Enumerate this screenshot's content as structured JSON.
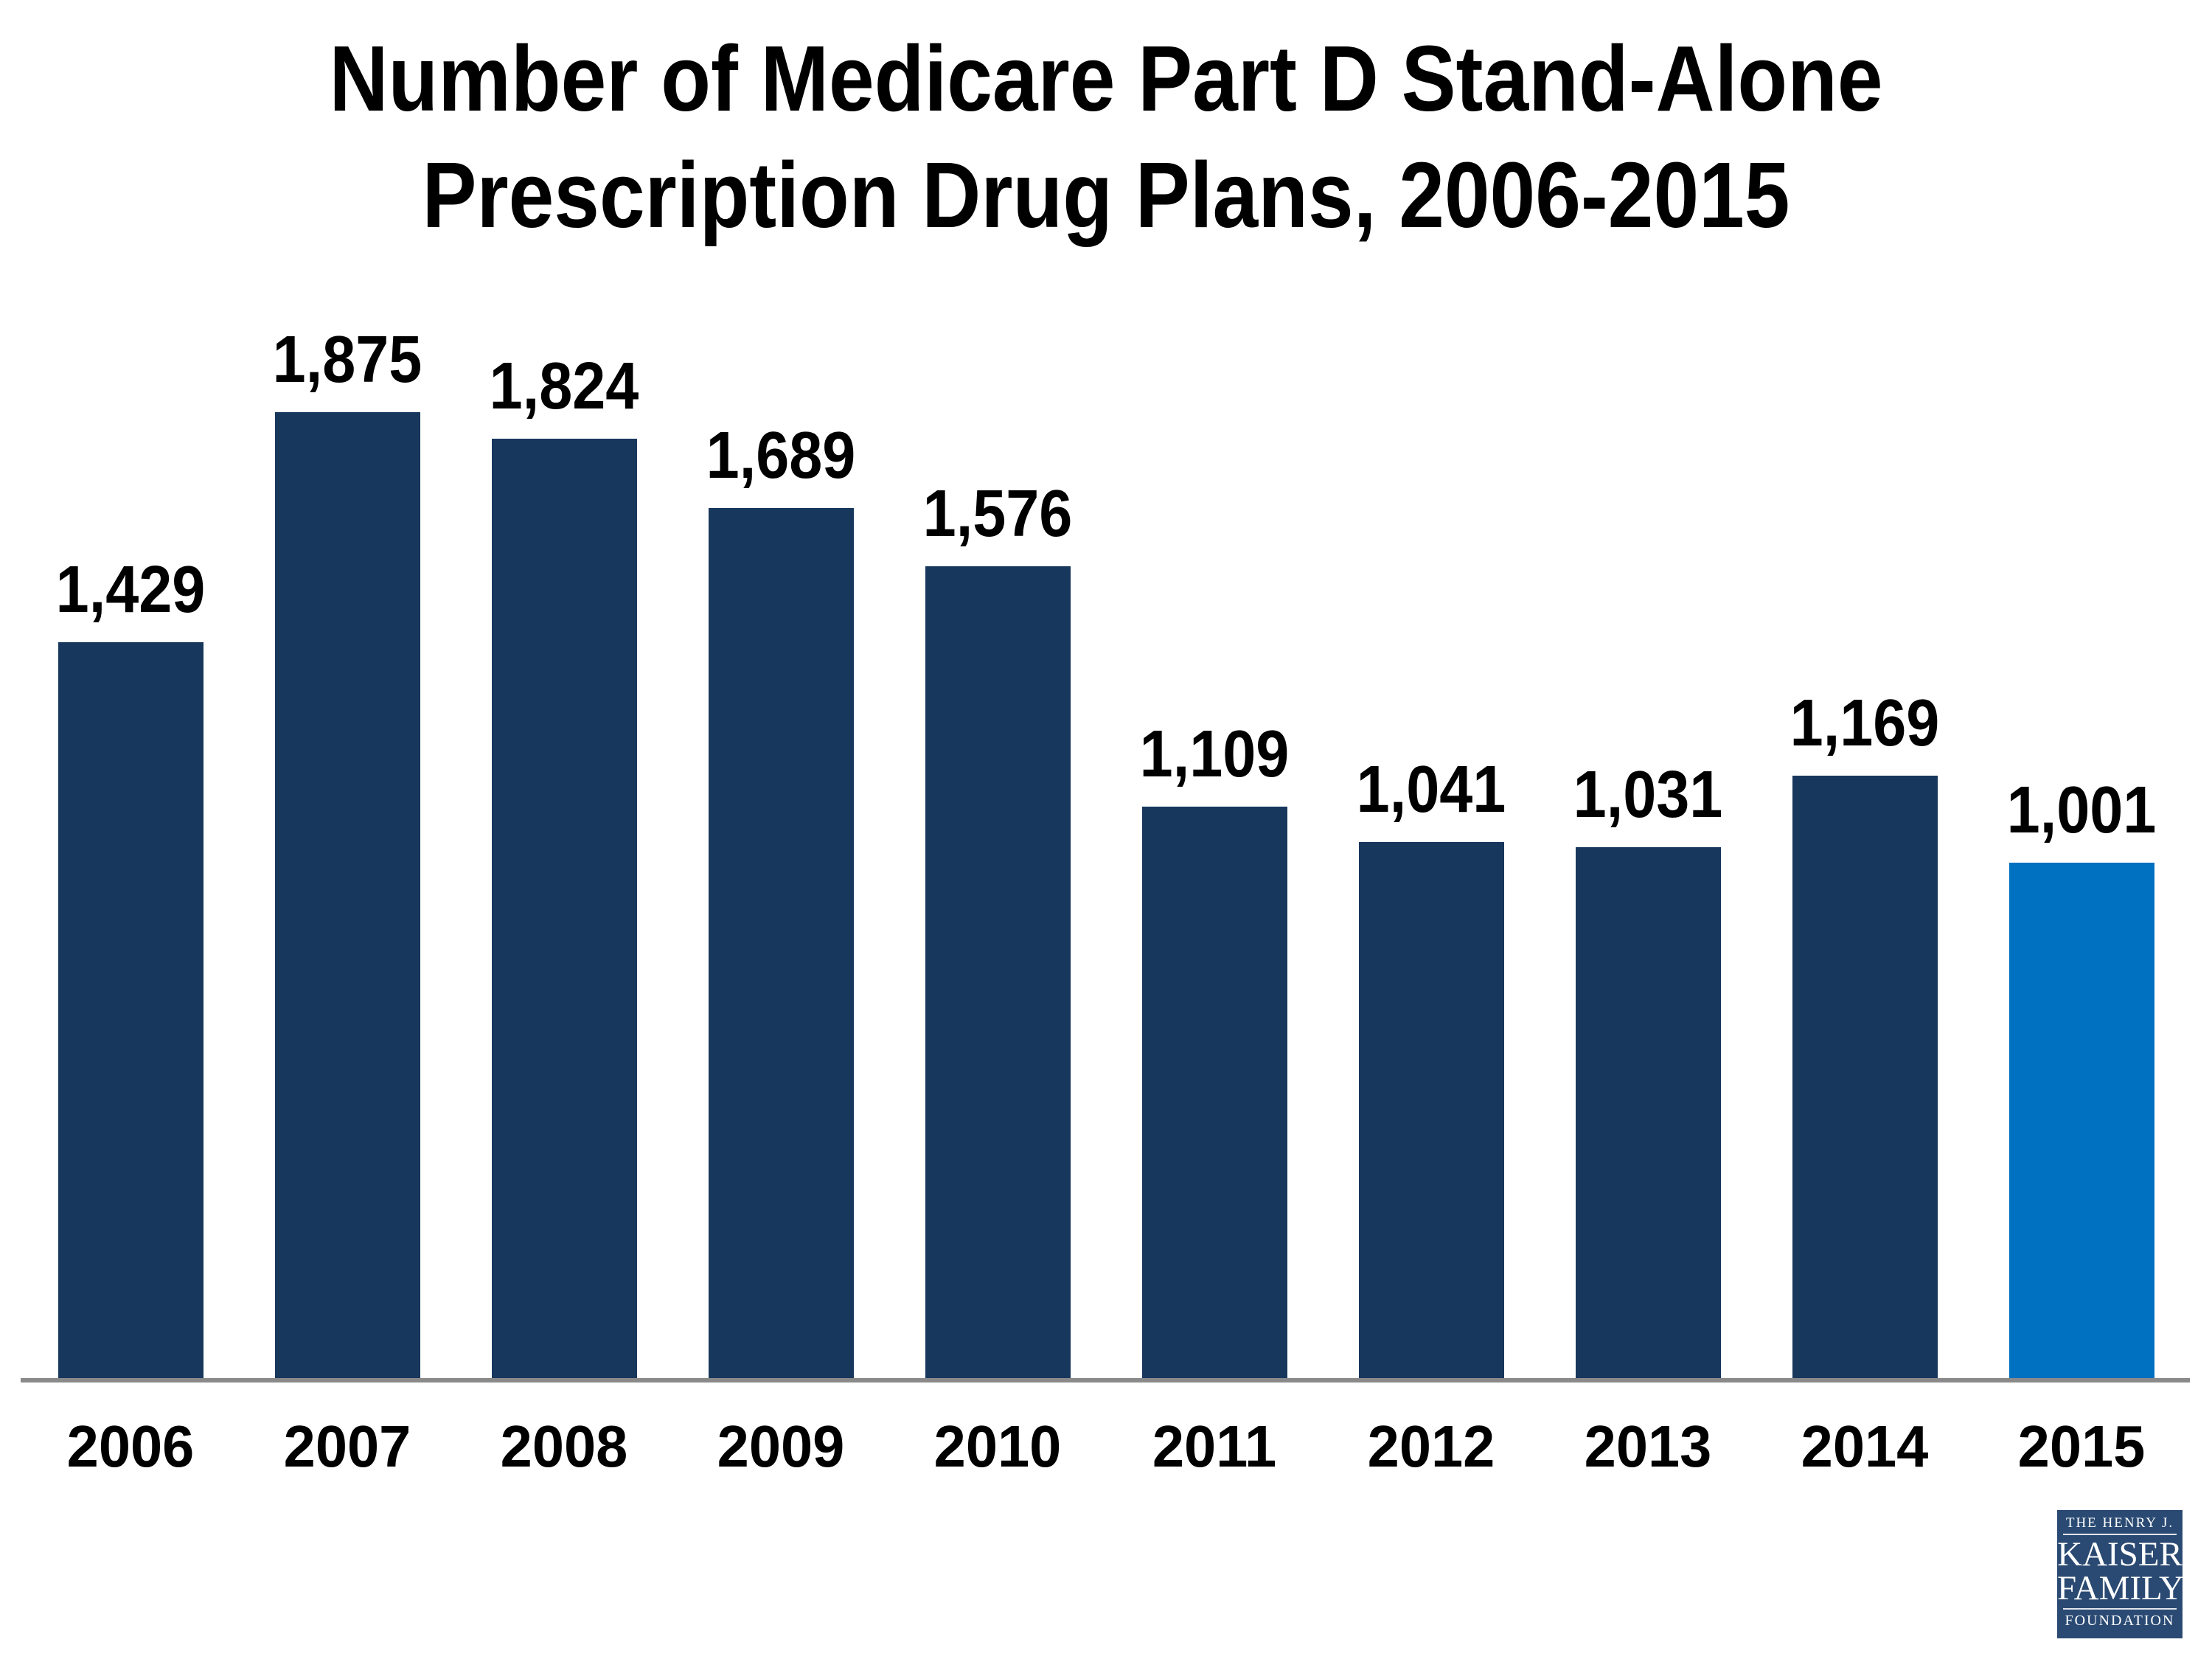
{
  "chart_data": {
    "type": "bar",
    "title": "Number of Medicare Part D Stand-Alone Prescription Drug Plans, 2006-2015",
    "title_lines": [
      "Number of Medicare Part D Stand-Alone",
      "Prescription Drug Plans, 2006-2015"
    ],
    "categories": [
      "2006",
      "2007",
      "2008",
      "2009",
      "2010",
      "2011",
      "2012",
      "2013",
      "2014",
      "2015"
    ],
    "values": [
      1429,
      1875,
      1824,
      1689,
      1576,
      1109,
      1041,
      1031,
      1169,
      1001
    ],
    "labels": [
      "1,429",
      "1,875",
      "1,824",
      "1,689",
      "1,576",
      "1,109",
      "1,041",
      "1,031",
      "1,169",
      "1,001"
    ],
    "xlabel": "",
    "ylabel": "",
    "ylim": [
      0,
      1875
    ],
    "grid": false,
    "legend": "none",
    "data_labels": "above-bars",
    "bar_color": "#17375D",
    "highlight_color": "#0070C0",
    "highlight_index": 9,
    "axis_line_color": "#8A8A8A",
    "text_color": "#000000",
    "background_color": "#FFFFFF"
  },
  "logo": {
    "background_color": "#2A4A73",
    "lines": [
      "THE HENRY J.",
      "KAISER",
      "FAMILY",
      "FOUNDATION"
    ]
  }
}
